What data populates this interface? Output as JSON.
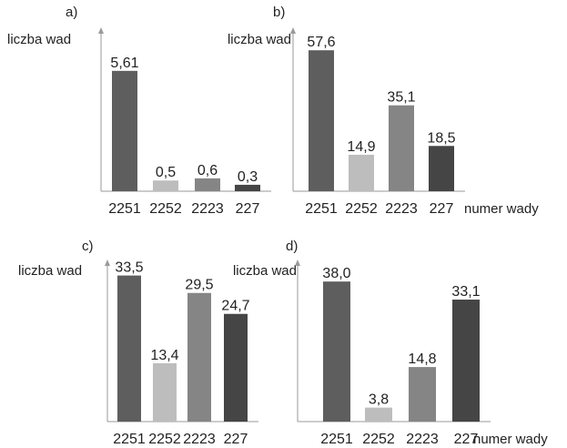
{
  "chart_data": [
    {
      "type": "bar",
      "panel": "a)",
      "ylabel": "liczba wad",
      "xlabel": "",
      "categories": [
        "2251",
        "2252",
        "2223",
        "227"
      ],
      "values": [
        5.61,
        0.5,
        0.6,
        0.3
      ],
      "value_labels": [
        "5,61",
        "0,5",
        "0,6",
        "0,3"
      ],
      "colors": [
        "#5e5e5e",
        "#bdbdbd",
        "#858585",
        "#454545"
      ],
      "ylim": [
        0,
        7.3
      ],
      "grid": false
    },
    {
      "type": "bar",
      "panel": "b)",
      "ylabel": "liczba wad",
      "xlabel": "numer wady",
      "categories": [
        "2251",
        "2252",
        "2223",
        "227"
      ],
      "values": [
        57.6,
        14.9,
        35.1,
        18.5
      ],
      "value_labels": [
        "57,6",
        "14,9",
        "35,1",
        "18,5"
      ],
      "colors": [
        "#5e5e5e",
        "#bdbdbd",
        "#858585",
        "#454545"
      ],
      "ylim": [
        0,
        64
      ],
      "grid": false
    },
    {
      "type": "bar",
      "panel": "c)",
      "ylabel": "liczba wad",
      "xlabel": "",
      "categories": [
        "2251",
        "2252",
        "2223",
        "227"
      ],
      "values": [
        33.5,
        13.4,
        29.5,
        24.7
      ],
      "value_labels": [
        "33,5",
        "13,4",
        "29,5",
        "24,7"
      ],
      "colors": [
        "#5e5e5e",
        "#bdbdbd",
        "#858585",
        "#454545"
      ],
      "ylim": [
        0,
        35.5
      ],
      "grid": false
    },
    {
      "type": "bar",
      "panel": "d)",
      "ylabel": "liczba wad",
      "xlabel": "numer wady",
      "categories": [
        "2251",
        "2252",
        "2223",
        "227"
      ],
      "values": [
        38.0,
        3.8,
        14.8,
        33.1
      ],
      "value_labels": [
        "38,0",
        "3,8",
        "14,8",
        "33,1"
      ],
      "colors": [
        "#5e5e5e",
        "#bdbdbd",
        "#858585",
        "#454545"
      ],
      "ylim": [
        0,
        42
      ],
      "grid": false
    }
  ]
}
